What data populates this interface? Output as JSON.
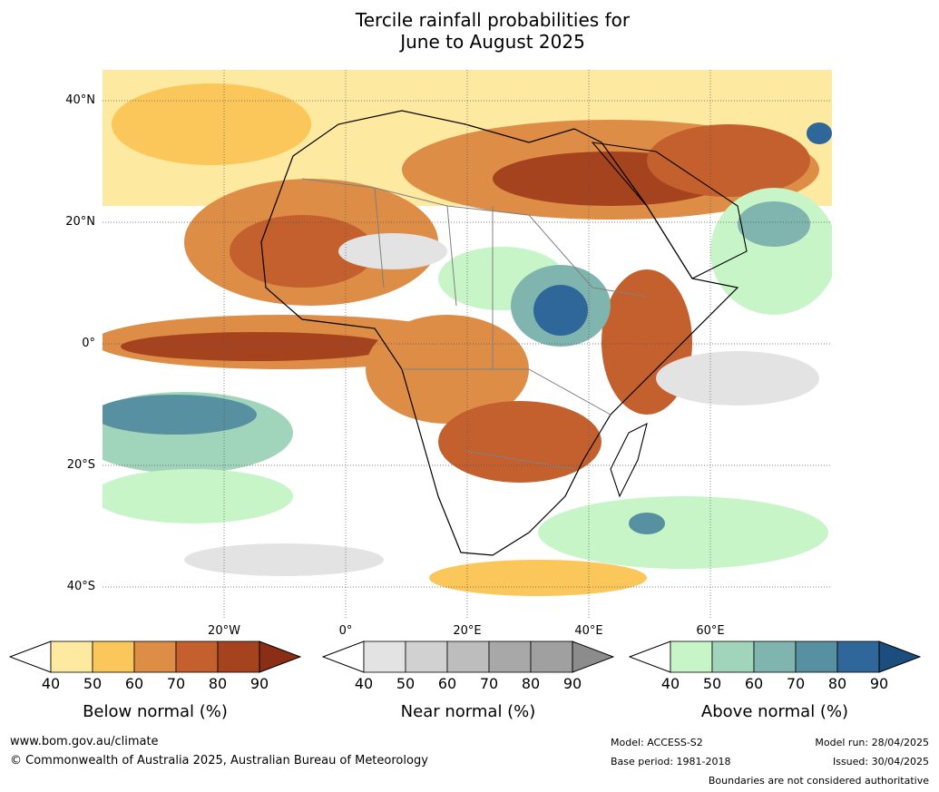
{
  "title": {
    "line1": "Tercile rainfall probabilities for",
    "line2": "June to August 2025"
  },
  "map": {
    "lat_labels": [
      "40°N",
      "20°N",
      "0°",
      "20°S",
      "40°S"
    ],
    "lon_labels": [
      "20°W",
      "0°",
      "20°E",
      "40°E",
      "60°E"
    ],
    "colors": {
      "below": [
        "#fde9a0",
        "#fbc65a",
        "#dd8d45",
        "#c45f2e",
        "#a6431f",
        "#8a2e16"
      ],
      "near": [
        "#e3e3e3",
        "#d1d1d1",
        "#bdbdbd",
        "#a8a8a8",
        "#8c8c8c"
      ],
      "above": [
        "#c7f5c8",
        "#a1d5bb",
        "#7fb5ae",
        "#5790a0",
        "#30679a",
        "#1b4d7e"
      ]
    }
  },
  "legends": [
    {
      "label": "Below normal (%)",
      "ticks": [
        "40",
        "50",
        "60",
        "70",
        "80",
        "90"
      ]
    },
    {
      "label": "Near normal (%)",
      "ticks": [
        "40",
        "50",
        "60",
        "70",
        "80",
        "90"
      ]
    },
    {
      "label": "Above normal (%)",
      "ticks": [
        "40",
        "50",
        "60",
        "70",
        "80",
        "90"
      ]
    }
  ],
  "footer": {
    "url": "www.bom.gov.au/climate",
    "copyright": "© Commonwealth of Australia 2025, Australian Bureau of Meteorology",
    "model": "Model: ACCESS-S2",
    "base_period": "Base period: 1981-2018",
    "model_run": "Model run: 28/04/2025",
    "issued": "Issued: 30/04/2025",
    "boundaries": "Boundaries are not considered authoritative"
  }
}
